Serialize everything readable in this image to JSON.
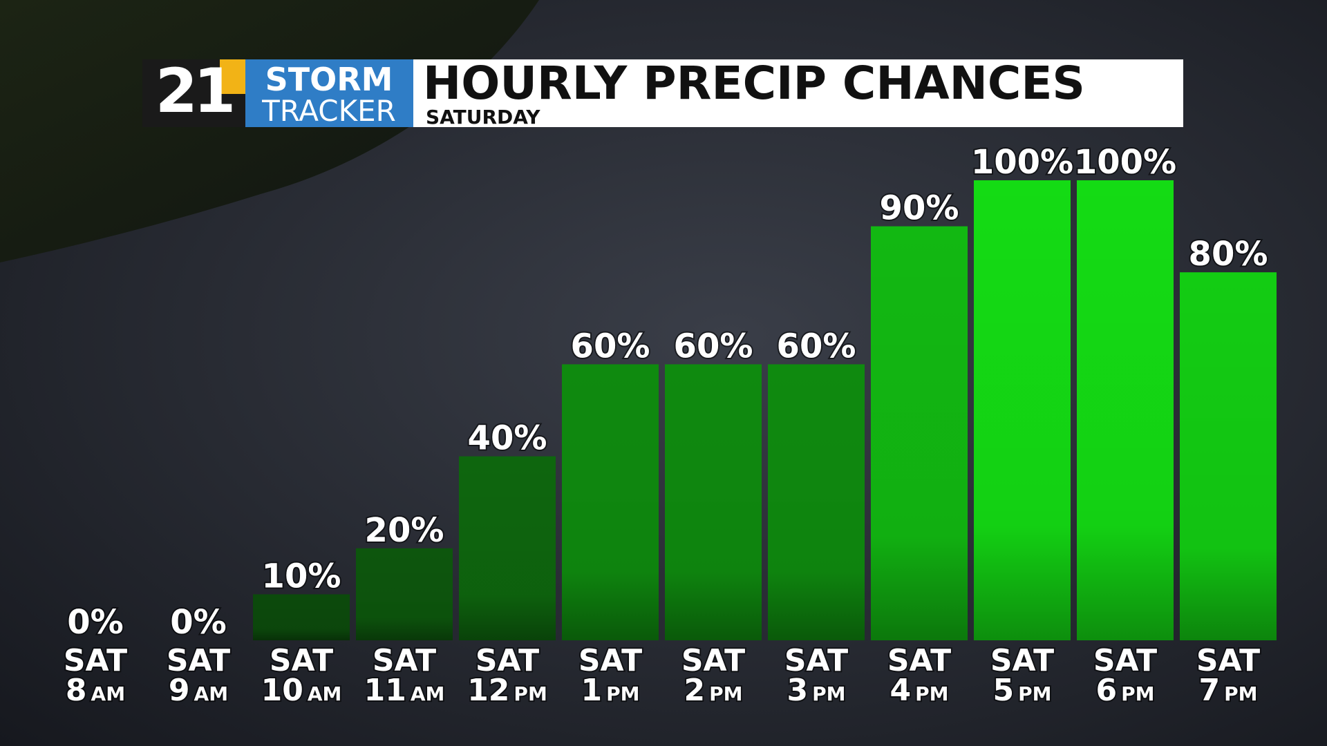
{
  "logo": {
    "number": "21",
    "line1": "STORM",
    "line2": "TRACKER"
  },
  "chart_data": {
    "type": "bar",
    "title": "HOURLY PRECIP CHANCES",
    "subtitle": "SATURDAY",
    "categories": [
      {
        "day": "SAT",
        "hour": "8",
        "period": "AM"
      },
      {
        "day": "SAT",
        "hour": "9",
        "period": "AM"
      },
      {
        "day": "SAT",
        "hour": "10",
        "period": "AM"
      },
      {
        "day": "SAT",
        "hour": "11",
        "period": "AM"
      },
      {
        "day": "SAT",
        "hour": "12",
        "period": "PM"
      },
      {
        "day": "SAT",
        "hour": "1",
        "period": "PM"
      },
      {
        "day": "SAT",
        "hour": "2",
        "period": "PM"
      },
      {
        "day": "SAT",
        "hour": "3",
        "period": "PM"
      },
      {
        "day": "SAT",
        "hour": "4",
        "period": "PM"
      },
      {
        "day": "SAT",
        "hour": "5",
        "period": "PM"
      },
      {
        "day": "SAT",
        "hour": "6",
        "period": "PM"
      },
      {
        "day": "SAT",
        "hour": "7",
        "period": "PM"
      }
    ],
    "values": [
      0,
      0,
      10,
      20,
      40,
      60,
      60,
      60,
      90,
      100,
      100,
      80
    ],
    "value_labels": [
      "0%",
      "0%",
      "10%",
      "20%",
      "40%",
      "60%",
      "60%",
      "60%",
      "90%",
      "100%",
      "100%",
      "80%"
    ],
    "colors": [
      "#0b3d0b",
      "#0b3d0b",
      "#0c4a0c",
      "#0d560d",
      "#0e660e",
      "#0f8a0f",
      "#0f8a0f",
      "#0f8a0f",
      "#12b812",
      "#14db14",
      "#14db14",
      "#13cc13"
    ],
    "ylim": [
      0,
      100
    ]
  }
}
